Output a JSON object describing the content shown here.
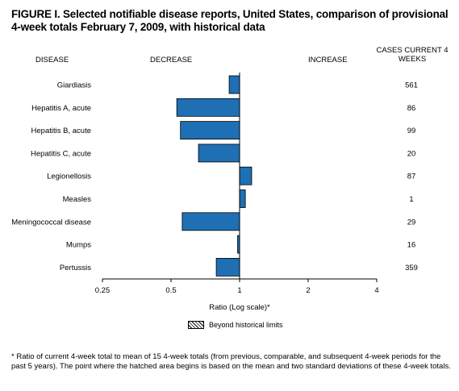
{
  "figure": {
    "title": "FIGURE I. Selected notifiable disease reports, United States, comparison of provisional 4-week totals February 7, 2009, with historical data",
    "headers": {
      "disease": "DISEASE",
      "decrease": "DECREASE",
      "increase": "INCREASE",
      "cases": "CASES CURRENT 4 WEEKS"
    },
    "legend_label": "Beyond historical limits",
    "footnote": "* Ratio of current 4-week total to mean of 15 4-week totals (from previous, comparable, and subsequent 4-week periods for the past 5 years). The point where the hatched area begins is based on the mean and two standard deviations of these 4-week totals."
  },
  "chart_data": {
    "type": "bar",
    "orientation": "horizontal",
    "xlabel": "Ratio (Log scale)*",
    "xscale": "log2",
    "xlim": [
      0.25,
      4
    ],
    "xticks": [
      0.25,
      0.5,
      1,
      2,
      4
    ],
    "xtick_labels": [
      "0.25",
      "0.5",
      "1",
      "2",
      "4"
    ],
    "baseline": 1,
    "bar_color": "#1f6fb5",
    "categories": [
      "Giardiasis",
      "Hepatitis A, acute",
      "Hepatitis B, acute",
      "Hepatitis C, acute",
      "Legionellosis",
      "Measles",
      "Meningococcal disease",
      "Mumps",
      "Pertussis"
    ],
    "values": [
      0.9,
      0.53,
      0.55,
      0.66,
      1.13,
      1.06,
      0.56,
      0.98,
      0.79
    ],
    "cases_current_4_weeks": [
      "561",
      "86",
      "99",
      "20",
      "87",
      "1",
      "29",
      "16",
      "359"
    ]
  }
}
